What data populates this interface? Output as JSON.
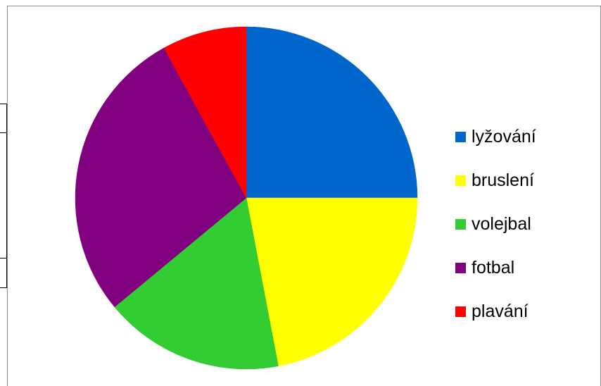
{
  "chart_data": {
    "type": "pie",
    "categories": [
      "lyžování",
      "bruslení",
      "volejbal",
      "fotbal",
      "plavání"
    ],
    "values": [
      25,
      22,
      17,
      28,
      8
    ],
    "colors": [
      "#0066cc",
      "#ffff00",
      "#33cc33",
      "#800080",
      "#ff0000"
    ],
    "title": "",
    "legend_position": "right",
    "start_angle_deg": 0,
    "direction": "clockwise"
  }
}
